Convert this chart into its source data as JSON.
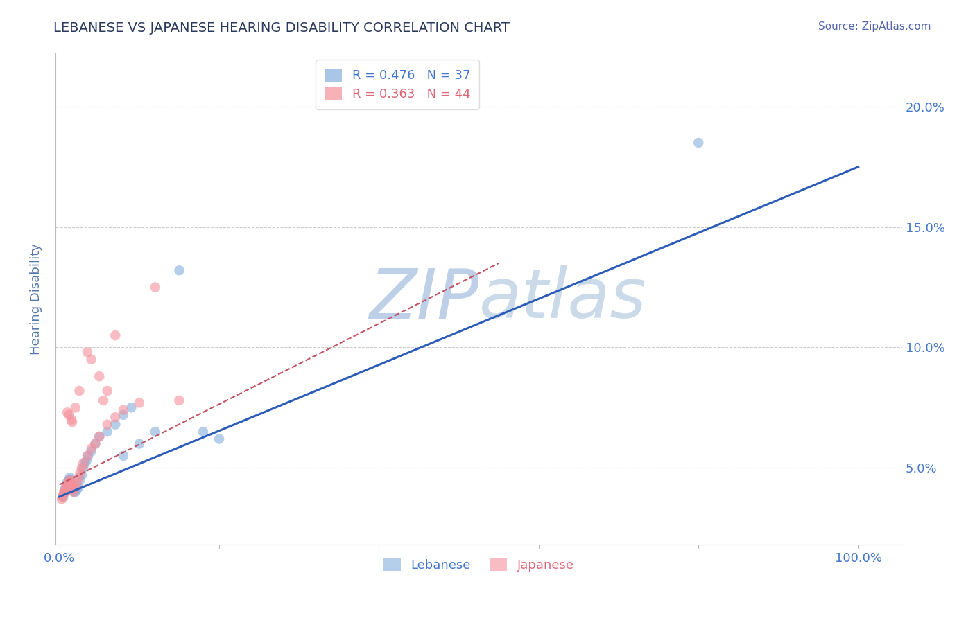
{
  "title": "LEBANESE VS JAPANESE HEARING DISABILITY CORRELATION CHART",
  "source_text": "Source: ZipAtlas.com",
  "ylabel": "Hearing Disability",
  "y_ticks": [
    0.05,
    0.1,
    0.15,
    0.2
  ],
  "y_tick_labels": [
    "5.0%",
    "10.0%",
    "15.0%",
    "20.0%"
  ],
  "y_min": 0.018,
  "y_max": 0.222,
  "x_min": -0.005,
  "x_max": 1.055,
  "R_blue": "0.476",
  "N_blue": 37,
  "R_pink": "0.363",
  "N_pink": 44,
  "blue_color": "#85AEDD",
  "pink_color": "#F4909A",
  "line_blue_color": "#2B5CB8",
  "line_pink_color": "#C45060",
  "watermark_zip_color": "#BDD0E8",
  "watermark_atlas_color": "#CADAE8",
  "title_color": "#2B3A5C",
  "source_color": "#5566AA",
  "axis_tick_color": "#4477CC",
  "ylabel_color": "#5577AA",
  "legend_label_blue_color": "#4477CC",
  "legend_label_pink_color": "#DD6677",
  "legend_label_blue": "Lebanese",
  "legend_label_pink": "Japanese",
  "blue_scatter_x": [
    0.005,
    0.006,
    0.007,
    0.008,
    0.009,
    0.01,
    0.011,
    0.012,
    0.013,
    0.014,
    0.015,
    0.016,
    0.017,
    0.018,
    0.02,
    0.022,
    0.024,
    0.026,
    0.028,
    0.03,
    0.032,
    0.034,
    0.036,
    0.04,
    0.045,
    0.05,
    0.06,
    0.07,
    0.08,
    0.09,
    0.1,
    0.12,
    0.15,
    0.18,
    0.2,
    0.08,
    0.8
  ],
  "blue_scatter_y": [
    0.038,
    0.04,
    0.041,
    0.042,
    0.043,
    0.044,
    0.044,
    0.045,
    0.046,
    0.045,
    0.043,
    0.042,
    0.041,
    0.04,
    0.04,
    0.041,
    0.042,
    0.045,
    0.047,
    0.05,
    0.052,
    0.053,
    0.055,
    0.057,
    0.06,
    0.063,
    0.065,
    0.068,
    0.072,
    0.075,
    0.06,
    0.065,
    0.132,
    0.065,
    0.062,
    0.055,
    0.185
  ],
  "pink_scatter_x": [
    0.003,
    0.004,
    0.005,
    0.006,
    0.007,
    0.008,
    0.009,
    0.01,
    0.011,
    0.012,
    0.013,
    0.014,
    0.015,
    0.016,
    0.017,
    0.018,
    0.02,
    0.022,
    0.024,
    0.026,
    0.028,
    0.03,
    0.035,
    0.04,
    0.045,
    0.05,
    0.06,
    0.07,
    0.08,
    0.1,
    0.12,
    0.15,
    0.035,
    0.04,
    0.05,
    0.06,
    0.07,
    0.01,
    0.012,
    0.015,
    0.016,
    0.02,
    0.025,
    0.055
  ],
  "pink_scatter_y": [
    0.037,
    0.038,
    0.039,
    0.04,
    0.04,
    0.041,
    0.042,
    0.043,
    0.043,
    0.044,
    0.045,
    0.044,
    0.043,
    0.042,
    0.041,
    0.04,
    0.042,
    0.044,
    0.046,
    0.048,
    0.05,
    0.052,
    0.055,
    0.058,
    0.06,
    0.063,
    0.068,
    0.071,
    0.074,
    0.077,
    0.125,
    0.078,
    0.098,
    0.095,
    0.088,
    0.082,
    0.105,
    0.073,
    0.072,
    0.07,
    0.069,
    0.075,
    0.082,
    0.078
  ],
  "blue_line_x": [
    0.0,
    1.0
  ],
  "blue_line_y": [
    0.038,
    0.175
  ],
  "pink_line_x": [
    0.0,
    0.55
  ],
  "pink_line_y": [
    0.043,
    0.135
  ],
  "grid_color": "#CCCCCC",
  "bg_color": "#FFFFFF"
}
